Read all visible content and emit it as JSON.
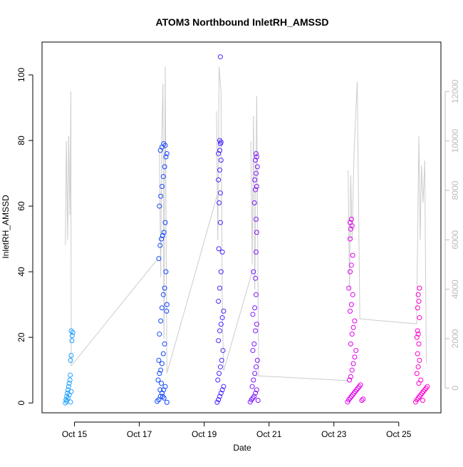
{
  "chart_data": {
    "type": "scatter",
    "title": "ATOM3 Northbound InletRH_AMSSD",
    "xlabel": "Date",
    "ylabel": "InletRH_AMSSD",
    "x_ticks": [
      "Oct 15",
      "Oct 17",
      "Oct 19",
      "Oct 21",
      "Oct 23",
      "Oct 25"
    ],
    "x_tick_days": [
      15,
      17,
      19,
      21,
      23,
      25
    ],
    "xlim_days": [
      14.0,
      26.3
    ],
    "ylim": [
      -3,
      110
    ],
    "y_ticks": [
      0,
      20,
      40,
      60,
      80,
      100
    ],
    "y2_ticks": [
      0,
      2000,
      4000,
      6000,
      8000,
      10000,
      12000
    ],
    "y2lim": [
      -1000,
      14000
    ],
    "grid": false,
    "colors": {
      "axis": "#000000",
      "secondary_axis": "#bbbbbb",
      "secondary_series": "#cccccc",
      "point_gradient": [
        "#22aaff",
        "#1133ff",
        "#cc00ff",
        "#ff00cc"
      ]
    },
    "secondary_series": {
      "axis": "right",
      "points": [
        [
          14.72,
          5800
        ],
        [
          14.75,
          10000
        ],
        [
          14.79,
          6000
        ],
        [
          14.82,
          10200
        ],
        [
          14.86,
          7000
        ],
        [
          14.89,
          12000
        ],
        [
          14.9,
          900
        ],
        [
          17.62,
          9600
        ],
        [
          17.66,
          4500
        ],
        [
          17.69,
          10000
        ],
        [
          17.73,
          12300
        ],
        [
          17.76,
          2000
        ],
        [
          17.8,
          13000
        ],
        [
          17.85,
          600
        ],
        [
          19.38,
          11200
        ],
        [
          19.42,
          6000
        ],
        [
          19.46,
          13000
        ],
        [
          19.52,
          12000
        ],
        [
          19.56,
          3000
        ],
        [
          19.6,
          700
        ],
        [
          20.44,
          10000
        ],
        [
          20.48,
          5000
        ],
        [
          20.52,
          11000
        ],
        [
          20.56,
          4000
        ],
        [
          20.62,
          11800
        ],
        [
          20.68,
          500
        ],
        [
          23.44,
          8800
        ],
        [
          23.48,
          4000
        ],
        [
          23.52,
          8600
        ],
        [
          23.56,
          6000
        ],
        [
          23.62,
          9500
        ],
        [
          23.72,
          12400
        ],
        [
          23.8,
          2800
        ],
        [
          25.55,
          2600
        ],
        [
          25.62,
          10200
        ],
        [
          25.66,
          6000
        ],
        [
          25.7,
          9000
        ],
        [
          25.75,
          7500
        ],
        [
          25.8,
          9200
        ],
        [
          25.85,
          1000
        ]
      ],
      "connectors": [
        [
          [
            14.9,
            900
          ],
          [
            17.55,
            5200
          ]
        ],
        [
          [
            17.85,
            600
          ],
          [
            19.4,
            7800
          ]
        ],
        [
          [
            19.6,
            700
          ],
          [
            20.5,
            4800
          ]
        ],
        [
          [
            20.6,
            500
          ],
          [
            23.45,
            300
          ]
        ],
        [
          [
            23.8,
            2800
          ],
          [
            25.55,
            2600
          ]
        ]
      ]
    },
    "series": [
      {
        "values": [
          [
            14.72,
            0
          ],
          [
            14.74,
            1
          ],
          [
            14.76,
            2
          ],
          [
            14.78,
            3
          ],
          [
            14.8,
            4
          ],
          [
            14.82,
            5
          ],
          [
            14.84,
            6
          ],
          [
            14.86,
            7
          ],
          [
            14.76,
            0.5
          ],
          [
            14.8,
            1.5
          ],
          [
            14.84,
            2.5
          ],
          [
            14.88,
            0.3
          ],
          [
            14.9,
            3.5
          ],
          [
            14.88,
            13
          ],
          [
            14.9,
            14.5
          ],
          [
            14.92,
            19
          ],
          [
            14.93,
            20.5
          ],
          [
            14.95,
            21.5
          ],
          [
            14.9,
            22
          ],
          [
            14.87,
            8.5
          ]
        ]
      },
      {
        "values": [
          [
            17.55,
            0.5
          ],
          [
            17.6,
            1
          ],
          [
            17.65,
            2
          ],
          [
            17.7,
            3
          ],
          [
            17.75,
            4
          ],
          [
            17.8,
            5
          ],
          [
            17.85,
            0.2
          ],
          [
            17.58,
            7
          ],
          [
            17.62,
            9
          ],
          [
            17.66,
            10
          ],
          [
            17.7,
            12
          ],
          [
            17.74,
            15
          ],
          [
            17.78,
            18
          ],
          [
            17.62,
            21
          ],
          [
            17.66,
            25
          ],
          [
            17.7,
            29
          ],
          [
            17.74,
            33
          ],
          [
            17.78,
            35
          ],
          [
            17.82,
            40
          ],
          [
            17.6,
            44
          ],
          [
            17.64,
            48
          ],
          [
            17.68,
            50
          ],
          [
            17.72,
            51
          ],
          [
            17.76,
            52
          ],
          [
            17.8,
            55
          ],
          [
            17.62,
            60
          ],
          [
            17.66,
            63
          ],
          [
            17.7,
            66
          ],
          [
            17.74,
            69
          ],
          [
            17.78,
            72
          ],
          [
            17.82,
            75
          ],
          [
            17.65,
            77
          ],
          [
            17.7,
            78
          ],
          [
            17.75,
            79
          ],
          [
            17.8,
            78.5
          ],
          [
            17.85,
            76
          ],
          [
            17.85,
            30
          ],
          [
            17.84,
            28
          ],
          [
            17.6,
            13
          ],
          [
            17.64,
            4
          ],
          [
            17.68,
            6
          ],
          [
            17.72,
            2
          ],
          [
            17.76,
            1.5
          ]
        ]
      },
      {
        "values": [
          [
            19.4,
            0.2
          ],
          [
            19.44,
            1
          ],
          [
            19.48,
            2
          ],
          [
            19.52,
            3
          ],
          [
            19.56,
            4
          ],
          [
            19.6,
            5
          ],
          [
            19.42,
            7
          ],
          [
            19.46,
            9
          ],
          [
            19.5,
            11
          ],
          [
            19.54,
            13
          ],
          [
            19.58,
            16
          ],
          [
            19.44,
            19
          ],
          [
            19.48,
            22
          ],
          [
            19.52,
            24
          ],
          [
            19.56,
            26
          ],
          [
            19.6,
            28
          ],
          [
            19.44,
            31
          ],
          [
            19.48,
            35
          ],
          [
            19.52,
            40
          ],
          [
            19.56,
            46
          ],
          [
            19.45,
            47
          ],
          [
            19.5,
            55
          ],
          [
            19.46,
            61
          ],
          [
            19.5,
            64
          ],
          [
            19.44,
            68
          ],
          [
            19.48,
            71
          ],
          [
            19.52,
            74
          ],
          [
            19.44,
            76
          ],
          [
            19.48,
            77
          ],
          [
            19.5,
            79
          ],
          [
            19.52,
            79.5
          ],
          [
            19.48,
            80
          ],
          [
            19.5,
            105.5
          ]
        ]
      },
      {
        "values": [
          [
            20.42,
            0.3
          ],
          [
            20.46,
            1
          ],
          [
            20.5,
            1.5
          ],
          [
            20.54,
            2
          ],
          [
            20.58,
            3
          ],
          [
            20.62,
            4
          ],
          [
            20.66,
            0.8
          ],
          [
            20.48,
            5
          ],
          [
            20.52,
            7
          ],
          [
            20.56,
            9
          ],
          [
            20.6,
            11
          ],
          [
            20.64,
            13
          ],
          [
            20.5,
            16
          ],
          [
            20.54,
            18
          ],
          [
            20.58,
            22
          ],
          [
            20.62,
            24
          ],
          [
            20.5,
            27
          ],
          [
            20.56,
            29
          ],
          [
            20.6,
            33
          ],
          [
            20.58,
            38
          ],
          [
            20.52,
            40
          ],
          [
            20.6,
            46
          ],
          [
            20.62,
            52
          ],
          [
            20.6,
            56
          ],
          [
            20.55,
            61
          ],
          [
            20.58,
            65
          ],
          [
            20.62,
            66
          ],
          [
            20.56,
            68
          ],
          [
            20.6,
            70
          ],
          [
            20.64,
            72
          ],
          [
            20.58,
            74
          ],
          [
            20.62,
            75
          ],
          [
            20.6,
            76
          ]
        ]
      },
      {
        "values": [
          [
            23.42,
            0.3
          ],
          [
            23.46,
            1
          ],
          [
            23.5,
            1.5
          ],
          [
            23.54,
            2
          ],
          [
            23.58,
            2.5
          ],
          [
            23.62,
            3
          ],
          [
            23.66,
            3.5
          ],
          [
            23.7,
            4
          ],
          [
            23.74,
            4.5
          ],
          [
            23.78,
            5
          ],
          [
            23.82,
            5.5
          ],
          [
            23.86,
            0.8
          ],
          [
            23.9,
            1.2
          ],
          [
            23.48,
            7
          ],
          [
            23.52,
            8
          ],
          [
            23.56,
            10
          ],
          [
            23.6,
            12
          ],
          [
            23.64,
            14
          ],
          [
            23.68,
            16
          ],
          [
            23.52,
            18
          ],
          [
            23.56,
            21
          ],
          [
            23.6,
            23
          ],
          [
            23.64,
            25
          ],
          [
            23.5,
            28
          ],
          [
            23.54,
            30
          ],
          [
            23.58,
            33
          ],
          [
            23.46,
            35
          ],
          [
            23.5,
            40
          ],
          [
            23.54,
            42
          ],
          [
            23.58,
            45
          ],
          [
            23.5,
            50
          ],
          [
            23.52,
            53
          ],
          [
            23.56,
            54
          ],
          [
            23.5,
            55
          ],
          [
            23.54,
            56
          ]
        ]
      },
      {
        "values": [
          [
            25.52,
            0.3
          ],
          [
            25.56,
            1
          ],
          [
            25.6,
            1.5
          ],
          [
            25.64,
            2
          ],
          [
            25.68,
            2.5
          ],
          [
            25.72,
            3
          ],
          [
            25.76,
            3.5
          ],
          [
            25.8,
            4
          ],
          [
            25.84,
            4.5
          ],
          [
            25.88,
            5
          ],
          [
            25.62,
            6
          ],
          [
            25.68,
            7
          ],
          [
            25.74,
            0.8
          ],
          [
            25.56,
            9
          ],
          [
            25.6,
            11
          ],
          [
            25.64,
            13
          ],
          [
            25.58,
            15
          ],
          [
            25.62,
            18
          ],
          [
            25.56,
            20
          ],
          [
            25.6,
            21
          ],
          [
            25.58,
            22
          ],
          [
            25.64,
            26
          ],
          [
            25.58,
            29
          ],
          [
            25.62,
            31
          ],
          [
            25.6,
            33
          ],
          [
            25.64,
            35
          ]
        ]
      }
    ]
  }
}
